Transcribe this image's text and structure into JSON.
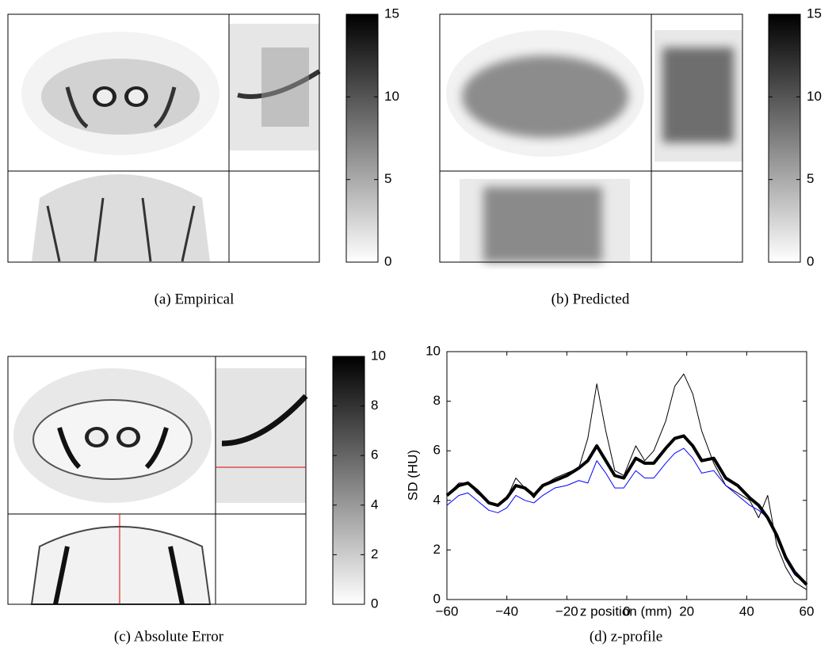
{
  "chart_data": [
    {
      "type": "image",
      "caption": "(a) Empirical",
      "clim": [
        0,
        15
      ],
      "cticks": [
        0,
        5,
        10,
        15
      ]
    },
    {
      "type": "image",
      "caption": "(b) Predicted",
      "clim": [
        0,
        15
      ],
      "cticks": [
        0,
        5,
        10,
        15
      ]
    },
    {
      "type": "image",
      "caption": "(c) Absolute Error",
      "clim": [
        0,
        10
      ],
      "cticks": [
        0,
        2,
        4,
        6,
        8,
        10
      ]
    },
    {
      "type": "line",
      "caption": "(d) z-profile",
      "xlabel": "z position (mm)",
      "ylabel": "SD (HU)",
      "xlim": [
        -60,
        60
      ],
      "xticks": [
        {
          "value": -60,
          "label": "−60"
        },
        {
          "value": -40,
          "label": "−40"
        },
        {
          "value": -20,
          "label": "−20"
        },
        0,
        20,
        40,
        60
      ],
      "ylim": [
        0,
        10
      ],
      "yticks": [
        0,
        2,
        4,
        6,
        8,
        10
      ],
      "x": [
        -60,
        -56,
        -53,
        -50,
        -46,
        -43,
        -40,
        -37,
        -34,
        -31,
        -28,
        -24,
        -20,
        -16,
        -13,
        -10,
        -7,
        -4,
        -1,
        3,
        6,
        9,
        13,
        16,
        19,
        22,
        25,
        29,
        33,
        37,
        41,
        44,
        47,
        50,
        53,
        56,
        60
      ],
      "series": [
        {
          "color": "#000000",
          "width": 1,
          "values": [
            4.2,
            4.7,
            4.7,
            4.3,
            3.9,
            3.8,
            4.1,
            4.9,
            4.5,
            4.1,
            4.6,
            4.9,
            5.1,
            5.3,
            6.5,
            8.7,
            6.8,
            5.2,
            5.0,
            6.2,
            5.6,
            6.0,
            7.2,
            8.6,
            9.1,
            8.3,
            6.8,
            5.5,
            4.6,
            4.3,
            4.0,
            3.3,
            4.2,
            2.2,
            1.3,
            0.7,
            0.4
          ]
        },
        {
          "color": "#0000ff",
          "width": 1,
          "values": [
            3.8,
            4.2,
            4.3,
            4.0,
            3.6,
            3.5,
            3.7,
            4.2,
            4.0,
            3.9,
            4.2,
            4.5,
            4.6,
            4.8,
            4.7,
            5.6,
            5.1,
            4.5,
            4.5,
            5.2,
            4.9,
            4.9,
            5.5,
            5.9,
            6.1,
            5.7,
            5.1,
            5.2,
            4.6,
            4.2,
            3.8,
            3.6,
            3.3,
            2.5,
            1.6,
            1.0,
            0.6
          ]
        },
        {
          "color": "#000000",
          "width": 4,
          "values": [
            4.2,
            4.6,
            4.7,
            4.4,
            3.9,
            3.8,
            4.1,
            4.6,
            4.5,
            4.2,
            4.6,
            4.8,
            5.0,
            5.3,
            5.6,
            6.2,
            5.6,
            5.0,
            4.9,
            5.7,
            5.5,
            5.5,
            6.1,
            6.5,
            6.6,
            6.2,
            5.6,
            5.7,
            4.9,
            4.6,
            4.1,
            3.8,
            3.3,
            2.6,
            1.7,
            1.1,
            0.6
          ]
        }
      ]
    }
  ]
}
